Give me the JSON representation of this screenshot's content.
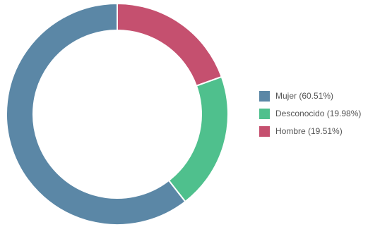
{
  "chart_data": {
    "type": "pie",
    "variant": "donut",
    "legend_position": "right",
    "series": [
      {
        "label": "Mujer (60.51%)",
        "value": 60.51,
        "color": "#5b87a6"
      },
      {
        "label": "Desconocido (19.98%)",
        "value": 19.98,
        "color": "#4fc08d"
      },
      {
        "label": "Hombre (19.51%)",
        "value": 19.51,
        "color": "#c5506f"
      }
    ]
  }
}
